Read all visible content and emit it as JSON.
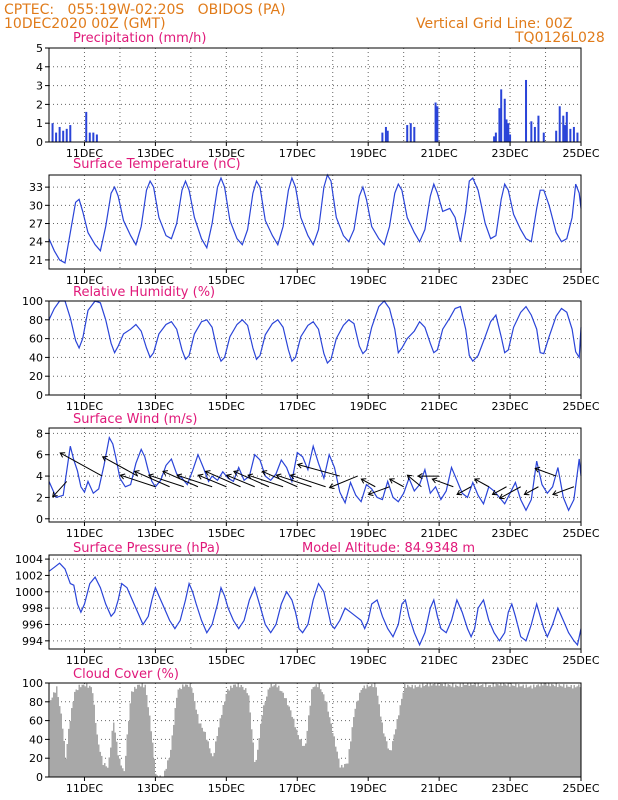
{
  "header": {
    "line1": "CPTEC:   055:19W-02:20S   OBIDOS (PA)",
    "line2": "10DEC2020 00Z (GMT)",
    "grid_note": "Vertical Grid Line: 00Z",
    "code": "TQ0126L028"
  },
  "colors": {
    "header": "#e07b1a",
    "title": "#e0197a",
    "line": "#2a44d8",
    "bar": "#2a44d8",
    "cloud": "#a8a8a8",
    "arrow": "#000000"
  },
  "x_ticks": [
    "11DEC",
    "13DEC",
    "15DEC",
    "17DEC",
    "19DEC",
    "21DEC",
    "23DEC",
    "25DEC"
  ],
  "panels": [
    {
      "id": "precip",
      "title": "Precipitation (mm/h)",
      "y_ticks": [
        "0",
        "1",
        "2",
        "3",
        "4",
        "5"
      ],
      "ylim": [
        0,
        5
      ]
    },
    {
      "id": "temp",
      "title": "Surface Temperature (nC)",
      "y_ticks": [
        "21",
        "24",
        "27",
        "30",
        "33"
      ],
      "ylim": [
        19.5,
        35
      ]
    },
    {
      "id": "rh",
      "title": "Relative Humidity (%)",
      "y_ticks": [
        "0",
        "20",
        "40",
        "60",
        "80",
        "100"
      ],
      "ylim": [
        0,
        100
      ]
    },
    {
      "id": "wind",
      "title": "Surface Wind (m/s)",
      "y_ticks": [
        "0",
        "2",
        "4",
        "6",
        "8"
      ],
      "ylim": [
        -0.3,
        8.5
      ]
    },
    {
      "id": "pres",
      "title": "Surface Pressure (hPa)",
      "extra": "Model Altitude: 84.9348 m",
      "y_ticks": [
        "994",
        "996",
        "998",
        "1000",
        "1002",
        "1004"
      ],
      "ylim": [
        993,
        1004.5
      ]
    },
    {
      "id": "cloud",
      "title": "Cloud Cover (%)",
      "y_ticks": [
        "0",
        "20",
        "40",
        "60",
        "80",
        "100"
      ],
      "ylim": [
        0,
        100
      ]
    }
  ],
  "chart_data": [
    {
      "type": "bar",
      "title": "Precipitation (mm/h)",
      "ylim": [
        0,
        5
      ],
      "x_unit": "days since 10DEC2020 00Z",
      "x": [
        0.1,
        0.2,
        0.3,
        0.4,
        0.5,
        0.6,
        1.05,
        1.15,
        1.25,
        1.35,
        9.4,
        9.5,
        9.55,
        10.1,
        10.2,
        10.3,
        10.9,
        10.95,
        12.55,
        12.6,
        12.7,
        12.75,
        12.85,
        12.9,
        12.95,
        13.0,
        13.45,
        13.6,
        13.7,
        13.8,
        13.95,
        14.3,
        14.4,
        14.5,
        14.55,
        14.6,
        14.7,
        14.8,
        14.9
      ],
      "values": [
        1.0,
        0.5,
        0.8,
        0.6,
        0.7,
        0.9,
        1.6,
        0.5,
        0.5,
        0.4,
        0.5,
        0.8,
        0.6,
        0.9,
        1.0,
        0.8,
        2.1,
        1.9,
        0.3,
        0.5,
        1.8,
        2.8,
        2.3,
        1.2,
        1.0,
        0.4,
        3.3,
        1.1,
        0.8,
        1.4,
        0.5,
        0.6,
        1.9,
        1.4,
        0.9,
        1.6,
        0.7,
        0.8,
        0.5
      ]
    },
    {
      "type": "line",
      "title": "Surface Temperature (nC)",
      "ylim": [
        19.5,
        35
      ],
      "x_unit": "days since 10DEC2020 00Z",
      "x": [
        0,
        0.15,
        0.3,
        0.45,
        0.6,
        0.75,
        0.85,
        0.95,
        1.1,
        1.3,
        1.45,
        1.6,
        1.75,
        1.85,
        1.95,
        2.1,
        2.3,
        2.45,
        2.6,
        2.75,
        2.85,
        2.95,
        3.1,
        3.3,
        3.45,
        3.6,
        3.75,
        3.85,
        3.95,
        4.1,
        4.3,
        4.45,
        4.6,
        4.75,
        4.85,
        4.95,
        5.1,
        5.3,
        5.45,
        5.6,
        5.75,
        5.85,
        5.95,
        6.1,
        6.3,
        6.45,
        6.6,
        6.75,
        6.85,
        6.95,
        7.1,
        7.3,
        7.45,
        7.6,
        7.75,
        7.85,
        7.95,
        8.1,
        8.3,
        8.45,
        8.6,
        8.75,
        8.85,
        8.95,
        9.1,
        9.3,
        9.45,
        9.6,
        9.75,
        9.85,
        9.95,
        10.1,
        10.3,
        10.45,
        10.6,
        10.75,
        10.85,
        10.95,
        11.1,
        11.3,
        11.45,
        11.6,
        11.75,
        11.85,
        11.95,
        12.1,
        12.3,
        12.45,
        12.6,
        12.75,
        12.85,
        12.95,
        13.1,
        13.3,
        13.45,
        13.6,
        13.75,
        13.85,
        13.95,
        14.1,
        14.3,
        14.45,
        14.6,
        14.75,
        14.85,
        14.95,
        15.0
      ],
      "values": [
        24.5,
        22.5,
        21.0,
        20.5,
        25.5,
        30.5,
        31.0,
        29.0,
        25.5,
        23.5,
        22.5,
        26.5,
        32.0,
        33.0,
        31.5,
        27.5,
        25.0,
        23.5,
        26.5,
        32.5,
        34.0,
        33.0,
        28.0,
        25.0,
        24.5,
        27.0,
        32.5,
        34.0,
        32.5,
        28.0,
        24.5,
        23.0,
        27.0,
        33.0,
        34.5,
        33.0,
        27.5,
        24.5,
        23.5,
        26.0,
        32.0,
        34.0,
        33.0,
        27.5,
        25.0,
        23.5,
        26.5,
        32.5,
        34.5,
        33.0,
        28.0,
        25.0,
        23.5,
        26.0,
        33.0,
        35.0,
        34.0,
        28.0,
        25.0,
        24.0,
        26.0,
        31.5,
        33.0,
        31.0,
        26.5,
        24.5,
        23.5,
        26.5,
        32.0,
        33.5,
        32.5,
        28.0,
        25.5,
        24.0,
        26.0,
        31.5,
        33.5,
        32.0,
        29.0,
        29.5,
        28.0,
        24.0,
        29.0,
        34.0,
        34.5,
        32.5,
        27.0,
        24.5,
        25.0,
        31.0,
        33.5,
        32.5,
        28.5,
        26.0,
        24.5,
        24.0,
        29.5,
        32.5,
        32.5,
        30.0,
        25.5,
        24.0,
        24.5,
        28.0,
        33.5,
        32.0,
        29.5
      ]
    },
    {
      "type": "line",
      "title": "Relative Humidity (%)",
      "ylim": [
        0,
        100
      ],
      "x_unit": "days since 10DEC2020 00Z",
      "x": [
        0,
        0.15,
        0.3,
        0.45,
        0.6,
        0.75,
        0.85,
        0.95,
        1.1,
        1.3,
        1.45,
        1.6,
        1.75,
        1.85,
        1.95,
        2.1,
        2.3,
        2.45,
        2.6,
        2.75,
        2.85,
        2.95,
        3.1,
        3.3,
        3.45,
        3.6,
        3.75,
        3.85,
        3.95,
        4.1,
        4.3,
        4.45,
        4.6,
        4.75,
        4.85,
        4.95,
        5.1,
        5.3,
        5.45,
        5.6,
        5.75,
        5.85,
        5.95,
        6.1,
        6.3,
        6.45,
        6.6,
        6.75,
        6.85,
        6.95,
        7.1,
        7.3,
        7.45,
        7.6,
        7.75,
        7.85,
        7.95,
        8.1,
        8.3,
        8.45,
        8.6,
        8.75,
        8.85,
        8.95,
        9.1,
        9.3,
        9.45,
        9.6,
        9.75,
        9.85,
        9.95,
        10.1,
        10.3,
        10.45,
        10.6,
        10.75,
        10.85,
        10.95,
        11.1,
        11.3,
        11.45,
        11.6,
        11.75,
        11.85,
        11.95,
        12.1,
        12.3,
        12.45,
        12.6,
        12.75,
        12.85,
        12.95,
        13.1,
        13.3,
        13.45,
        13.6,
        13.75,
        13.85,
        13.95,
        14.1,
        14.3,
        14.45,
        14.6,
        14.75,
        14.85,
        14.95,
        15.0
      ],
      "values": [
        80,
        92,
        100,
        100,
        82,
        58,
        50,
        60,
        90,
        100,
        98,
        80,
        55,
        45,
        52,
        65,
        70,
        75,
        68,
        50,
        40,
        45,
        65,
        75,
        78,
        70,
        48,
        38,
        42,
        65,
        78,
        80,
        72,
        46,
        36,
        40,
        62,
        75,
        80,
        74,
        50,
        38,
        42,
        64,
        76,
        80,
        72,
        48,
        36,
        40,
        62,
        74,
        78,
        70,
        44,
        34,
        38,
        60,
        74,
        80,
        76,
        52,
        44,
        48,
        72,
        94,
        100,
        92,
        70,
        45,
        50,
        60,
        68,
        78,
        72,
        55,
        45,
        48,
        70,
        82,
        92,
        94,
        70,
        42,
        36,
        42,
        62,
        78,
        85,
        62,
        45,
        48,
        72,
        88,
        94,
        85,
        70,
        45,
        44,
        62,
        84,
        92,
        88,
        70,
        46,
        40,
        72
      ]
    },
    {
      "type": "line",
      "title": "Surface Wind (m/s)",
      "ylim": [
        -0.3,
        8.5
      ],
      "x_unit": "days since 10DEC2020 00Z",
      "x": [
        0,
        0.2,
        0.4,
        0.6,
        0.7,
        0.8,
        0.9,
        1.0,
        1.1,
        1.25,
        1.4,
        1.55,
        1.7,
        1.8,
        1.9,
        2.0,
        2.15,
        2.3,
        2.45,
        2.6,
        2.7,
        2.8,
        2.9,
        3.0,
        3.15,
        3.3,
        3.45,
        3.6,
        3.75,
        3.9,
        4.05,
        4.2,
        4.35,
        4.5,
        4.6,
        4.75,
        4.9,
        5.05,
        5.2,
        5.35,
        5.5,
        5.65,
        5.8,
        5.95,
        6.1,
        6.25,
        6.4,
        6.55,
        6.7,
        6.85,
        7.0,
        7.15,
        7.3,
        7.45,
        7.6,
        7.75,
        7.9,
        8.05,
        8.2,
        8.35,
        8.5,
        8.65,
        8.8,
        8.95,
        9.1,
        9.25,
        9.4,
        9.55,
        9.7,
        9.85,
        10.0,
        10.15,
        10.3,
        10.45,
        10.6,
        10.75,
        10.9,
        11.05,
        11.2,
        11.35,
        11.5,
        11.65,
        11.8,
        11.95,
        12.1,
        12.25,
        12.4,
        12.55,
        12.7,
        12.85,
        13.0,
        13.15,
        13.3,
        13.45,
        13.6,
        13.75,
        13.9,
        14.05,
        14.2,
        14.35,
        14.5,
        14.65,
        14.8,
        14.95,
        15.0
      ],
      "values": [
        3.5,
        2.0,
        2.2,
        6.8,
        5.5,
        4.5,
        3.0,
        2.5,
        3.5,
        2.4,
        2.8,
        5.0,
        7.6,
        7.0,
        5.5,
        3.8,
        3.0,
        3.2,
        5.2,
        6.5,
        5.8,
        4.5,
        3.5,
        3.0,
        3.6,
        5.0,
        5.6,
        4.2,
        3.8,
        3.2,
        4.5,
        6.0,
        4.8,
        3.5,
        4.0,
        3.6,
        4.4,
        3.8,
        3.5,
        4.8,
        3.6,
        4.0,
        6.0,
        5.5,
        4.0,
        3.6,
        4.2,
        5.5,
        4.8,
        3.5,
        6.2,
        5.8,
        4.6,
        6.8,
        5.2,
        3.8,
        6.0,
        4.8,
        2.5,
        1.5,
        3.4,
        2.2,
        1.6,
        3.2,
        2.8,
        2.0,
        1.8,
        3.5,
        2.0,
        1.6,
        2.4,
        3.8,
        2.6,
        3.2,
        4.6,
        2.4,
        3.0,
        1.8,
        2.6,
        4.8,
        3.6,
        2.4,
        2.0,
        3.4,
        2.2,
        1.4,
        3.0,
        2.6,
        2.0,
        1.4,
        2.4,
        3.4,
        1.8,
        0.8,
        1.8,
        5.4,
        3.2,
        2.4,
        3.0,
        4.8,
        2.0,
        0.8,
        1.8,
        5.6,
        4.0
      ]
    },
    {
      "type": "line",
      "title": "Surface Pressure (hPa)",
      "ylim": [
        993,
        1004.5
      ],
      "x_unit": "days since 10DEC2020 00Z",
      "x": [
        0,
        0.15,
        0.3,
        0.45,
        0.6,
        0.7,
        0.8,
        0.9,
        1.0,
        1.15,
        1.3,
        1.45,
        1.6,
        1.75,
        1.85,
        1.95,
        2.05,
        2.2,
        2.35,
        2.5,
        2.65,
        2.8,
        2.9,
        3.0,
        3.1,
        3.25,
        3.4,
        3.55,
        3.7,
        3.85,
        3.95,
        4.05,
        4.15,
        4.3,
        4.45,
        4.6,
        4.75,
        4.85,
        4.95,
        5.05,
        5.2,
        5.35,
        5.5,
        5.65,
        5.8,
        5.9,
        6.0,
        6.1,
        6.25,
        6.4,
        6.55,
        6.7,
        6.85,
        6.95,
        7.05,
        7.15,
        7.3,
        7.45,
        7.6,
        7.75,
        7.85,
        7.95,
        8.05,
        8.2,
        8.35,
        8.5,
        8.65,
        8.8,
        8.9,
        9.0,
        9.1,
        9.25,
        9.4,
        9.55,
        9.7,
        9.85,
        9.95,
        10.05,
        10.15,
        10.3,
        10.45,
        10.6,
        10.75,
        10.85,
        10.95,
        11.05,
        11.2,
        11.35,
        11.5,
        11.65,
        11.8,
        11.9,
        12.0,
        12.1,
        12.25,
        12.4,
        12.55,
        12.7,
        12.85,
        12.95,
        13.05,
        13.15,
        13.3,
        13.45,
        13.6,
        13.75,
        13.85,
        13.95,
        14.05,
        14.2,
        14.35,
        14.5,
        14.65,
        14.8,
        14.9,
        15.0
      ],
      "values": [
        1002.5,
        1003.0,
        1003.5,
        1002.8,
        1001.0,
        1000.8,
        998.5,
        997.5,
        998.5,
        1001.0,
        1001.8,
        1000.5,
        998.5,
        997.0,
        997.5,
        999.0,
        1001.0,
        1000.5,
        999.0,
        997.5,
        996.0,
        997.0,
        999.0,
        1000.5,
        999.5,
        998.0,
        996.5,
        995.5,
        996.5,
        999.0,
        1001.0,
        1000.0,
        998.5,
        996.5,
        995.0,
        996.0,
        998.5,
        1000.5,
        999.5,
        998.0,
        996.5,
        995.5,
        996.5,
        999.0,
        1000.5,
        999.0,
        997.5,
        996.0,
        995.0,
        996.0,
        998.5,
        1000.0,
        999.0,
        997.5,
        995.5,
        995.0,
        996.0,
        999.0,
        1001.0,
        1000.0,
        998.0,
        996.0,
        995.5,
        996.5,
        998.0,
        997.5,
        997.0,
        996.5,
        995.5,
        996.5,
        998.5,
        999.0,
        997.0,
        995.5,
        994.5,
        996.0,
        998.5,
        999.0,
        997.0,
        995.0,
        993.5,
        995.0,
        998.0,
        999.0,
        997.0,
        995.5,
        995.0,
        996.5,
        999.0,
        997.5,
        995.5,
        994.5,
        995.5,
        998.0,
        999.0,
        996.5,
        995.0,
        994.0,
        995.0,
        997.5,
        998.5,
        997.0,
        994.5,
        994.0,
        996.0,
        998.5,
        997.0,
        995.5,
        994.5,
        996.0,
        998.0,
        996.5,
        995.0,
        994.0,
        993.5,
        995.5
      ]
    },
    {
      "type": "area",
      "title": "Cloud Cover (%)",
      "ylim": [
        0,
        100
      ],
      "x_unit": "days since 10DEC2020 00Z",
      "x": [
        0,
        0.2,
        0.35,
        0.45,
        0.55,
        0.7,
        0.85,
        1.0,
        1.2,
        1.35,
        1.5,
        1.65,
        1.8,
        1.95,
        2.1,
        2.2,
        2.3,
        2.5,
        2.7,
        2.85,
        3.0,
        3.2,
        3.4,
        3.6,
        3.8,
        4.0,
        4.2,
        4.4,
        4.6,
        4.8,
        5.0,
        5.2,
        5.4,
        5.6,
        5.8,
        6.0,
        6.2,
        6.4,
        6.6,
        6.8,
        7.0,
        7.2,
        7.4,
        7.6,
        7.8,
        8.0,
        8.2,
        8.4,
        8.6,
        8.8,
        9.0,
        9.2,
        9.4,
        9.6,
        9.8,
        10.0,
        10.3,
        10.6,
        10.9,
        11.2,
        11.5,
        11.8,
        12.1,
        12.4,
        12.7,
        13.0,
        13.3,
        13.6,
        13.9,
        14.2,
        14.5,
        14.8,
        15.0
      ],
      "values": [
        80,
        95,
        60,
        20,
        55,
        90,
        97,
        98,
        95,
        40,
        15,
        10,
        60,
        20,
        5,
        50,
        90,
        98,
        97,
        55,
        0,
        0,
        25,
        92,
        98,
        97,
        60,
        45,
        20,
        60,
        92,
        98,
        97,
        90,
        10,
        70,
        97,
        98,
        88,
        70,
        45,
        30,
        96,
        98,
        80,
        45,
        10,
        15,
        72,
        95,
        97,
        98,
        50,
        25,
        60,
        97,
        96,
        98,
        99,
        98,
        97,
        99,
        98,
        97,
        99,
        98,
        97,
        96,
        99,
        98,
        97,
        96,
        98
      ]
    },
    {
      "type": "scatter",
      "title": "Surface Wind (m/s) — wind arrows",
      "x_unit": "days since 10DEC2020 00Z",
      "x": [
        0.5,
        1.5,
        2.5,
        3.0,
        3.4,
        3.8,
        4.2,
        4.6,
        5.0,
        5.4,
        5.8,
        6.2,
        6.6,
        7.0,
        7.4,
        7.8,
        8.2,
        8.7,
        9.2,
        9.6,
        10.0,
        10.5,
        11.0,
        11.4,
        11.9,
        12.4,
        12.9,
        13.3,
        13.8,
        14.3,
        14.8
      ],
      "values": [
        3.5,
        4.0,
        4.0,
        3.0,
        3.0,
        3.0,
        3.0,
        3.0,
        3.0,
        3.0,
        3.0,
        3.0,
        3.0,
        3.0,
        3.0,
        3.0,
        4.0,
        4.0,
        3.0,
        3.0,
        3.0,
        3.0,
        4.0,
        3.0,
        3.0,
        3.0,
        3.0,
        3.0,
        3.0,
        4.0,
        3.0
      ],
      "dx": [
        -2,
        -6,
        -5,
        -5,
        -5,
        -5,
        -5,
        -5,
        -4,
        -5,
        -4,
        -5,
        -5,
        -5,
        -5,
        -5,
        -6,
        -4,
        -2,
        -3,
        -2,
        -2,
        -3,
        -3,
        -2,
        -2,
        -2,
        -3,
        -2,
        -3,
        -3
      ],
      "dy": [
        4,
        -6,
        -5,
        -3,
        -4,
        -3,
        -4,
        -3,
        -3,
        -4,
        -3,
        -4,
        -3,
        -4,
        -3,
        -3,
        -3,
        3,
        -2,
        2,
        -2,
        -3,
        0,
        -2,
        2,
        -2,
        2,
        3,
        2,
        -2,
        2
      ]
    }
  ]
}
